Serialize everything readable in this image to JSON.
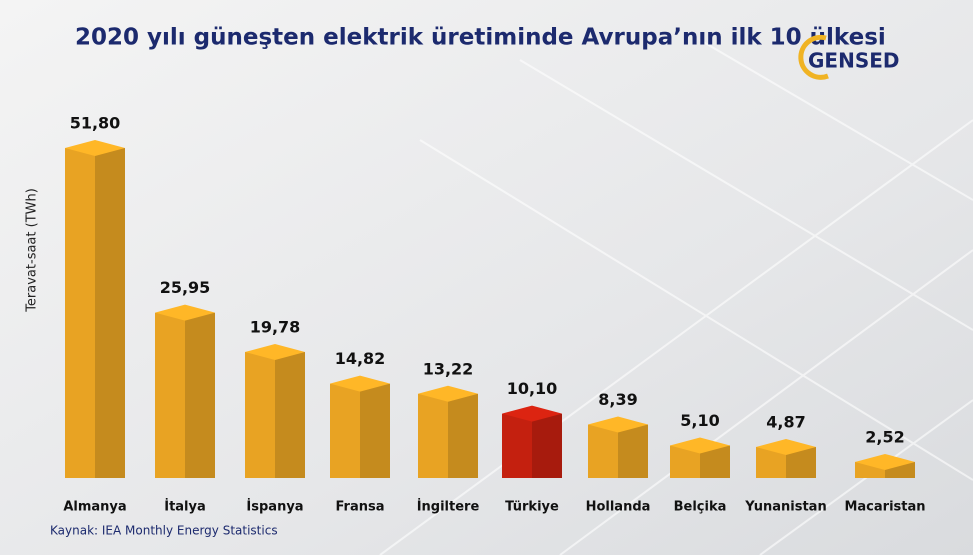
{
  "chart_data": {
    "type": "bar3d",
    "title": "2020 yılı güneşten elektrik üretiminde Avrupa’nın ilk 10 ülkesi",
    "y_label": "Teravat-saat (TWh)",
    "source": "Kaynak: IEA Monthly Energy Statistics",
    "logo": "GENSED",
    "categories": [
      "Almanya",
      "İtalya",
      "İspanya",
      "Fransa",
      "İngiltere",
      "Türkiye",
      "Hollanda",
      "Belçika",
      "Yunanistan",
      "Macaristan"
    ],
    "values": [
      51.8,
      25.95,
      19.78,
      14.82,
      13.22,
      10.1,
      8.39,
      5.1,
      4.87,
      2.52
    ],
    "value_labels": [
      "51,80",
      "25,95",
      "19,78",
      "14,82",
      "13,22",
      "10,10",
      "8,39",
      "5,10",
      "4,87",
      "2,52"
    ],
    "colors": [
      "#e8a323",
      "#e8a323",
      "#e8a323",
      "#e8a323",
      "#e8a323",
      "#c4200f",
      "#e8a323",
      "#e8a323",
      "#e8a323",
      "#e8a323"
    ]
  }
}
